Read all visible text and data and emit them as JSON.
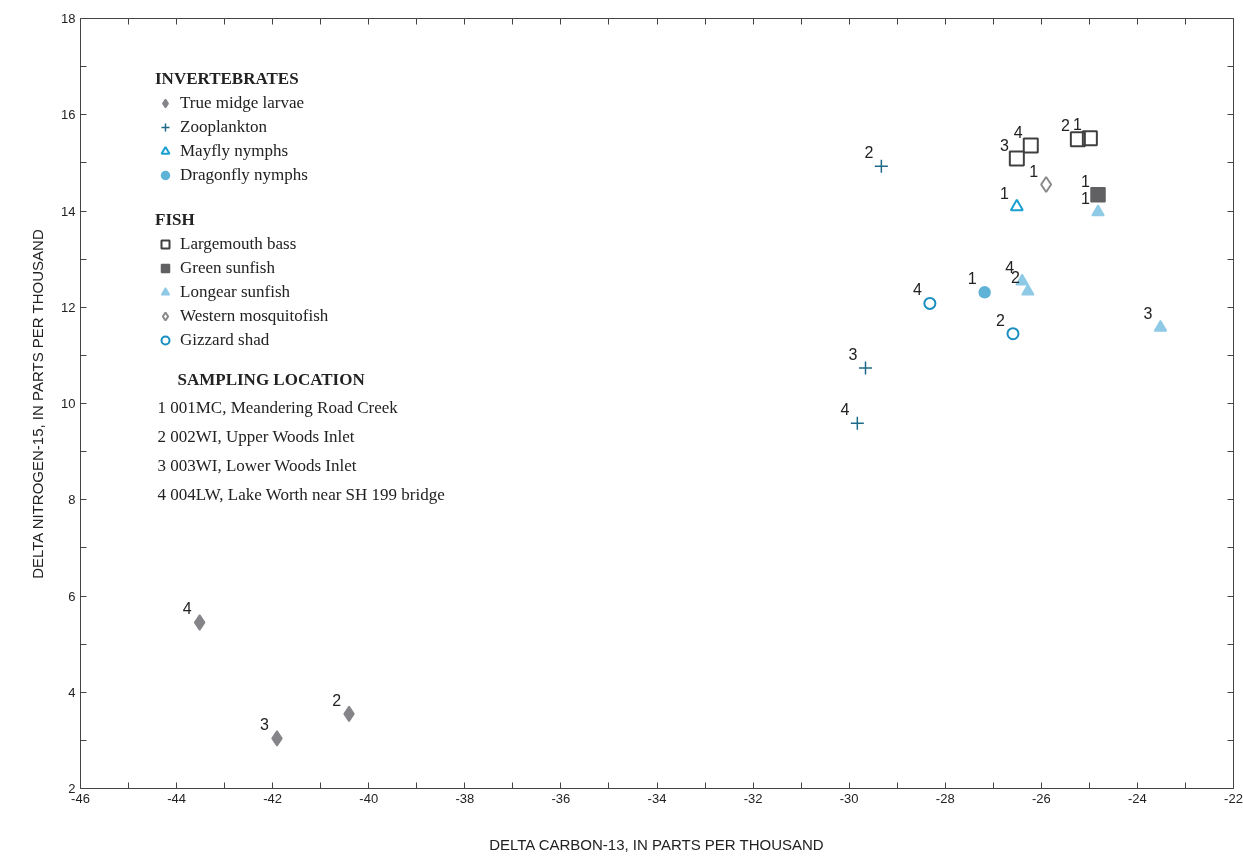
{
  "chart_data": {
    "type": "scatter",
    "xlabel": "DELTA CARBON-13, IN PARTS PER THOUSAND",
    "ylabel": "DELTA NITROGEN-15, IN PARTS PER THOUSAND",
    "xlim": [
      -46,
      -22
    ],
    "ylim": [
      2,
      18
    ],
    "xticks": [
      -46,
      {
        "value": -45,
        "label": null
      },
      -44,
      {
        "value": -43,
        "label": null
      },
      -42,
      {
        "value": -41,
        "label": null
      },
      -40,
      {
        "value": -39,
        "label": null
      },
      -38,
      {
        "value": -37,
        "label": null
      },
      -36,
      {
        "value": -35,
        "label": null
      },
      -34,
      {
        "value": -33,
        "label": null
      },
      -32,
      {
        "value": -31,
        "label": null
      },
      -30,
      {
        "value": -29,
        "label": null
      },
      -28,
      {
        "value": -27,
        "label": null
      },
      -26,
      {
        "value": -25,
        "label": null
      },
      -24,
      {
        "value": -23,
        "label": null
      },
      -22
    ],
    "yticks": [
      2,
      {
        "value": 3,
        "label": null
      },
      4,
      {
        "value": 5,
        "label": null
      },
      6,
      {
        "value": 7,
        "label": null
      },
      8,
      {
        "value": 9,
        "label": null
      },
      10,
      {
        "value": 11,
        "label": null
      },
      12,
      {
        "value": 13,
        "label": null
      },
      14,
      {
        "value": 15,
        "label": null
      },
      16,
      {
        "value": 17,
        "label": null
      },
      18
    ],
    "grid": false,
    "legend": "top left",
    "annotations": [
      "INVERTEBRATES",
      "FISH",
      "SAMPLING LOCATION",
      "1  001MC, Meandering Road Creek",
      "2  002WI, Upper Woods Inlet",
      "3  003WI, Lower Woods Inlet",
      "4  004LW, Lake Worth near SH 199 bridge",
      {
        "text": "4",
        "x": -43.52,
        "y": 5.45
      },
      {
        "text": "3",
        "x": -41.91,
        "y": 3.04
      },
      {
        "text": "2",
        "x": -40.41,
        "y": 3.55
      },
      {
        "text": "2",
        "x": -29.33,
        "y": 14.93
      },
      {
        "text": "3",
        "x": -29.66,
        "y": 10.74
      },
      {
        "text": "4",
        "x": -29.83,
        "y": 9.59
      },
      {
        "text": "1",
        "x": -26.51,
        "y": 14.09
      },
      {
        "text": "1",
        "x": -27.18,
        "y": 12.31
      },
      {
        "text": "1",
        "x": -24.99,
        "y": 15.51
      },
      {
        "text": "2",
        "x": -25.24,
        "y": 15.49
      },
      {
        "text": "3",
        "x": -26.51,
        "y": 15.09
      },
      {
        "text": "4",
        "x": -26.22,
        "y": 15.36
      },
      {
        "text": "1",
        "x": -24.82,
        "y": 14.34
      },
      {
        "text": "1",
        "x": -24.82,
        "y": 13.98
      },
      {
        "text": "2",
        "x": -26.28,
        "y": 12.33
      },
      {
        "text": "3",
        "x": -23.52,
        "y": 11.58
      },
      {
        "text": "4",
        "x": -26.4,
        "y": 12.54
      },
      {
        "text": "1",
        "x": -25.9,
        "y": 14.55
      },
      {
        "text": "2",
        "x": -26.59,
        "y": 11.45
      },
      {
        "text": "4",
        "x": -28.32,
        "y": 12.08
      }
    ],
    "series": [
      {
        "name": "True midge larvae",
        "color": "#858589",
        "marker": "diamond",
        "x": [
          -43.52,
          -41.91,
          -40.41
        ],
        "values": [
          5.45,
          3.04,
          3.55
        ]
      },
      {
        "name": "Zooplankton",
        "color": "#1f6a8a",
        "marker": "cross",
        "x": [
          -29.33,
          -29.66,
          -29.83
        ],
        "values": [
          14.93,
          10.74,
          9.59
        ]
      },
      {
        "name": "Mayfly nymphs",
        "color": "#1aa0d0",
        "marker": "triangle-open",
        "x": [
          -26.51
        ],
        "values": [
          14.09
        ]
      },
      {
        "name": "Dragonfly nymphs",
        "color": "#5fb3d6",
        "marker": "circle",
        "x": [
          -27.18
        ],
        "values": [
          12.31
        ]
      },
      {
        "name": "Largemouth bass",
        "color": "#404040",
        "marker": "square-open",
        "x": [
          -24.99,
          -25.24,
          -26.51,
          -26.22
        ],
        "values": [
          15.51,
          15.49,
          15.09,
          15.36
        ]
      },
      {
        "name": "Green sunfish",
        "color": "#616163",
        "marker": "square",
        "x": [
          -24.82
        ],
        "values": [
          14.34
        ]
      },
      {
        "name": "Longear sunfish",
        "color": "#8ecae6",
        "marker": "triangle",
        "x": [
          -24.82,
          -26.28,
          -23.52,
          -26.4
        ],
        "values": [
          13.98,
          12.33,
          11.58,
          12.54
        ]
      },
      {
        "name": "Western mosquitofish",
        "color": "#8a8a8a",
        "marker": "diamond-open",
        "x": [
          -25.9
        ],
        "values": [
          14.55
        ]
      },
      {
        "name": "Gizzard shad",
        "color": "#1a8fc0",
        "marker": "circle-open",
        "x": [
          -26.59,
          -28.32
        ],
        "values": [
          11.45,
          12.08
        ]
      }
    ]
  }
}
